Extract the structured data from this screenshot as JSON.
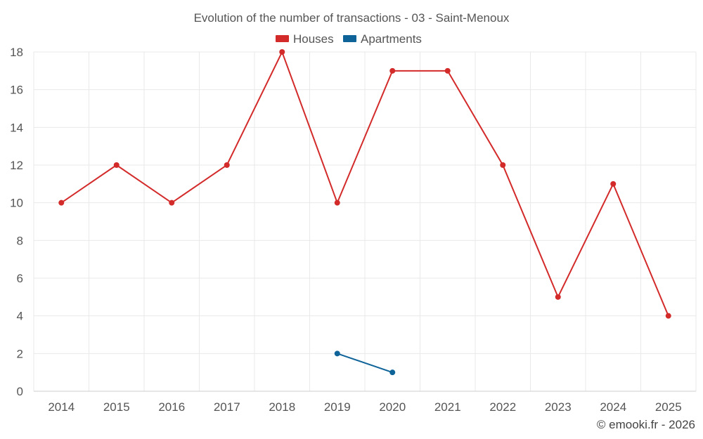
{
  "chart_data": {
    "type": "line",
    "title": "Evolution of the number of transactions - 03 - Saint-Menoux",
    "categories": [
      "2014",
      "2015",
      "2016",
      "2017",
      "2018",
      "2019",
      "2020",
      "2021",
      "2022",
      "2023",
      "2024",
      "2025"
    ],
    "series": [
      {
        "name": "Houses",
        "color": "#d32a2a",
        "values": [
          10,
          12,
          10,
          12,
          18,
          10,
          17,
          17,
          12,
          5,
          11,
          4
        ]
      },
      {
        "name": "Apartments",
        "color": "#0e6398",
        "values": [
          null,
          null,
          null,
          null,
          null,
          2,
          1,
          null,
          null,
          null,
          null,
          null
        ]
      }
    ],
    "ylim": [
      0,
      18
    ],
    "yticks": [
      0,
      2,
      4,
      6,
      8,
      10,
      12,
      14,
      16,
      18
    ],
    "xlabel": "",
    "ylabel": "",
    "grid": true,
    "legend": "top-center"
  },
  "credit": "© emooki.fr - 2026"
}
